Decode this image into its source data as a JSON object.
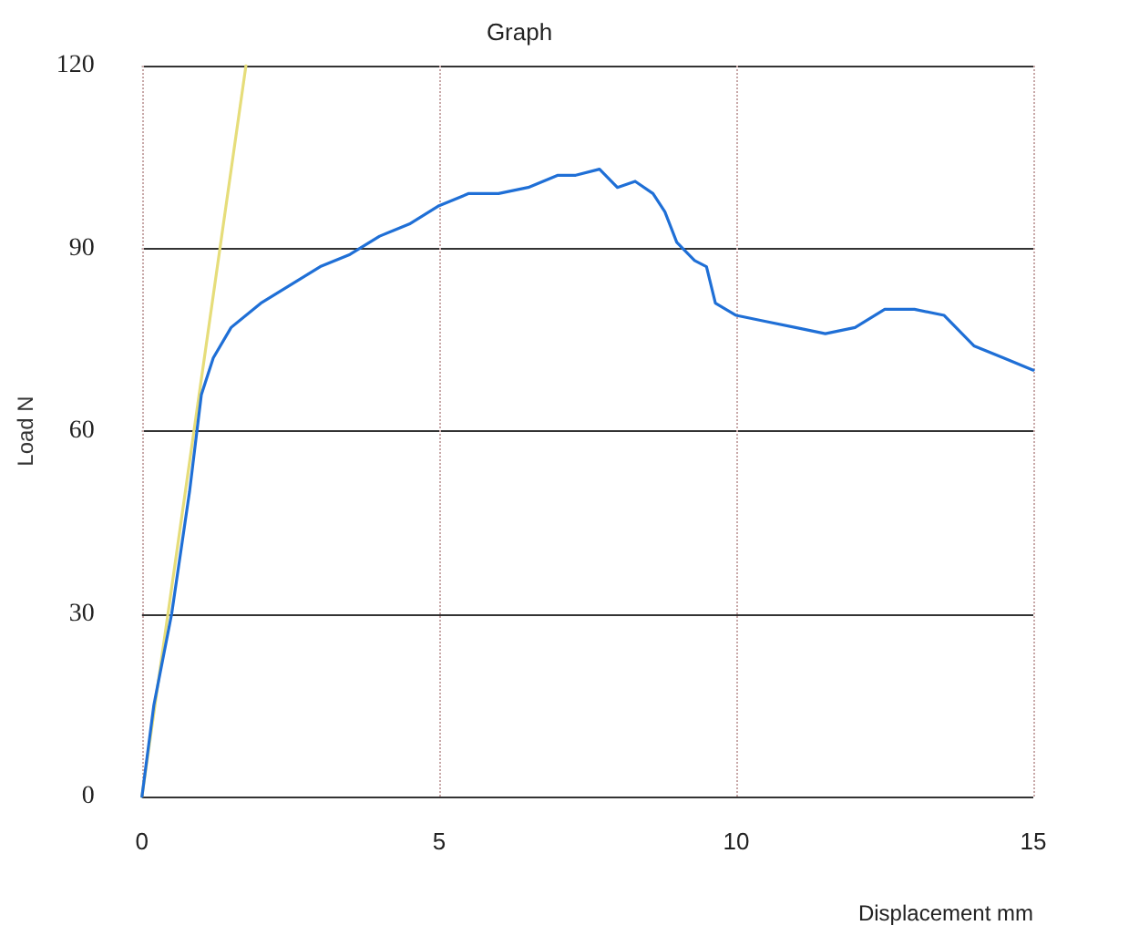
{
  "chart_data": {
    "type": "line",
    "title": "Graph",
    "xlabel": "Displacement mm",
    "ylabel": "Load N",
    "xlim": [
      0,
      15
    ],
    "xticks": [
      0,
      5,
      10,
      15
    ],
    "ylim": [
      0,
      120
    ],
    "yticks": [
      0,
      30,
      60,
      90,
      120
    ],
    "grid": true,
    "series": [
      {
        "color": "#e6dd7a",
        "x": [
          0,
          1.75
        ],
        "values": [
          0,
          120
        ]
      },
      {
        "color": "#1f6fd6",
        "x": [
          0,
          0.2,
          0.5,
          0.8,
          1.0,
          1.2,
          1.5,
          2,
          2.5,
          3,
          3.5,
          4,
          4.5,
          5,
          5.5,
          6,
          6.5,
          7,
          7.3,
          7.7,
          8,
          8.3,
          8.6,
          8.8,
          9,
          9.3,
          9.5,
          9.65,
          10,
          10.5,
          11,
          11.5,
          12,
          12.5,
          13,
          13.5,
          14,
          14.5,
          15
        ],
        "values": [
          0,
          15,
          30,
          50,
          66,
          72,
          77,
          81,
          84,
          87,
          89,
          92,
          94,
          97,
          99,
          99,
          100,
          102,
          102,
          103,
          100,
          101,
          99,
          96,
          91,
          88,
          87,
          81,
          79,
          78,
          77,
          76,
          77,
          80,
          80,
          79,
          74,
          72,
          70
        ]
      }
    ]
  }
}
